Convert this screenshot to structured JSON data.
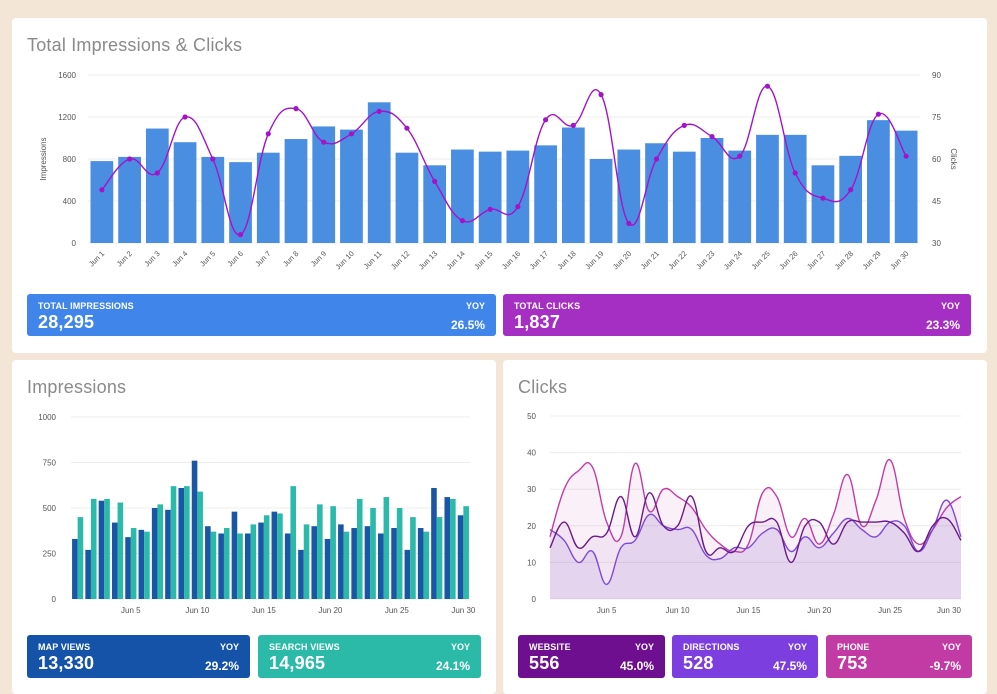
{
  "colors": {
    "impressions_bar": "#4a8ee2",
    "clicks_line": "#a314c9",
    "map_views": "#1a56a4",
    "search_views": "#2bbaaa",
    "website": "#6b1a8a",
    "directions": "#7e4ad6",
    "phone": "#c23ca8"
  },
  "top_panel": {
    "title": "Total Impressions & Clicks",
    "kpis": [
      {
        "label": "TOTAL IMPRESSIONS",
        "yoy_label": "YOY",
        "value": "28,295",
        "change": "26.5%",
        "color": "#3f85ea"
      },
      {
        "label": "TOTAL CLICKS",
        "yoy_label": "YOY",
        "value": "1,837",
        "change": "23.3%",
        "color": "#a62fc3"
      }
    ]
  },
  "impressions_panel": {
    "title": "Impressions",
    "kpis": [
      {
        "label": "MAP VIEWS",
        "yoy_label": "YOY",
        "value": "13,330",
        "change": "29.2%",
        "color": "#1553a8"
      },
      {
        "label": "SEARCH VIEWS",
        "yoy_label": "YOY",
        "value": "14,965",
        "change": "24.1%",
        "color": "#2bbaa7"
      }
    ]
  },
  "clicks_panel": {
    "title": "Clicks",
    "kpis": [
      {
        "label": "WEBSITE",
        "yoy_label": "YOY",
        "value": "556",
        "change": "45.0%",
        "color": "#6d0f8f"
      },
      {
        "label": "DIRECTIONS",
        "yoy_label": "YOY",
        "value": "528",
        "change": "47.5%",
        "color": "#7d3ee0"
      },
      {
        "label": "PHONE",
        "yoy_label": "YOY",
        "value": "753",
        "change": "-9.7%",
        "color": "#c23aa4"
      }
    ]
  },
  "chart_data": [
    {
      "type": "bar",
      "title": "Total Impressions & Clicks",
      "categories": [
        "Jun 1",
        "Jun 2",
        "Jun 3",
        "Jun 4",
        "Jun 5",
        "Jun 6",
        "Jun 7",
        "Jun 8",
        "Jun 9",
        "Jun 10",
        "Jun 11",
        "Jun 12",
        "Jun 13",
        "Jun 14",
        "Jun 15",
        "Jun 16",
        "Jun 17",
        "Jun 18",
        "Jun 19",
        "Jun 20",
        "Jun 21",
        "Jun 22",
        "Jun 23",
        "Jun 24",
        "Jun 25",
        "Jun 26",
        "Jun 27",
        "Jun 28",
        "Jun 29",
        "Jun 30"
      ],
      "series": [
        {
          "name": "Impressions",
          "type": "bar",
          "axis": "left",
          "values": [
            780,
            820,
            1090,
            960,
            820,
            770,
            860,
            990,
            1110,
            1080,
            1340,
            860,
            740,
            890,
            870,
            880,
            930,
            1100,
            800,
            890,
            950,
            870,
            1000,
            880,
            1030,
            1030,
            740,
            830,
            1170,
            1070
          ]
        },
        {
          "name": "Clicks",
          "type": "line",
          "axis": "right",
          "values": [
            49,
            60,
            55,
            75,
            60,
            33,
            69,
            78,
            66,
            69,
            77,
            71,
            52,
            38,
            42,
            43,
            74,
            72,
            83,
            37,
            60,
            72,
            68,
            61,
            86,
            55,
            46,
            49,
            76,
            61
          ]
        }
      ],
      "ylabel": "Impressions",
      "y2label": "Clicks",
      "ylim": [
        0,
        1600
      ],
      "yticks": [
        0,
        400,
        800,
        1200,
        1600
      ],
      "y2lim": [
        30,
        90
      ],
      "y2ticks": [
        30,
        45,
        60,
        75,
        90
      ],
      "grid": true
    },
    {
      "type": "bar",
      "title": "Impressions",
      "x": [
        1,
        2,
        3,
        4,
        5,
        6,
        7,
        8,
        9,
        10,
        11,
        12,
        13,
        14,
        15,
        16,
        17,
        18,
        19,
        20,
        21,
        22,
        23,
        24,
        25,
        26,
        27,
        28,
        29,
        30
      ],
      "xticks": [
        "Jun 5",
        "Jun 10",
        "Jun 15",
        "Jun 20",
        "Jun 25",
        "Jun 30"
      ],
      "xtick_positions": [
        5,
        10,
        15,
        20,
        25,
        30
      ],
      "series": [
        {
          "name": "Map Views",
          "values": [
            330,
            270,
            540,
            420,
            340,
            380,
            500,
            490,
            610,
            760,
            400,
            360,
            480,
            360,
            420,
            480,
            360,
            270,
            400,
            330,
            410,
            390,
            400,
            360,
            390,
            270,
            390,
            610,
            560,
            460
          ]
        },
        {
          "name": "Search Views",
          "values": [
            450,
            550,
            550,
            530,
            390,
            370,
            520,
            620,
            620,
            590,
            370,
            390,
            360,
            410,
            460,
            470,
            620,
            410,
            520,
            510,
            370,
            550,
            500,
            560,
            500,
            450,
            370,
            450,
            550,
            510
          ]
        }
      ],
      "ylim": [
        0,
        1000
      ],
      "yticks": [
        0,
        250,
        500,
        750,
        1000
      ],
      "grid": true
    },
    {
      "type": "area",
      "title": "Clicks",
      "x": [
        1,
        2,
        3,
        4,
        5,
        6,
        7,
        8,
        9,
        10,
        11,
        12,
        13,
        14,
        15,
        16,
        17,
        18,
        19,
        20,
        21,
        22,
        23,
        24,
        25,
        26,
        27,
        28,
        29,
        30
      ],
      "xticks": [
        "Jun 5",
        "Jun 10",
        "Jun 15",
        "Jun 20",
        "Jun 25",
        "Jun 30"
      ],
      "xtick_positions": [
        5,
        10,
        15,
        20,
        25,
        30
      ],
      "series": [
        {
          "name": "Website",
          "values": [
            14,
            21,
            14,
            17,
            18,
            28,
            17,
            29,
            20,
            20,
            28,
            13,
            14,
            13,
            20,
            21,
            21,
            10,
            20,
            21,
            15,
            21,
            21,
            21,
            21,
            18,
            13,
            20,
            22,
            16
          ]
        },
        {
          "name": "Directions",
          "values": [
            19,
            16,
            10,
            13,
            4,
            14,
            16,
            23,
            20,
            19,
            19,
            12,
            11,
            14,
            14,
            18,
            19,
            13,
            17,
            14,
            18,
            22,
            19,
            17,
            21,
            20,
            13,
            19,
            27,
            17
          ]
        },
        {
          "name": "Phone",
          "values": [
            17,
            30,
            35,
            36,
            21,
            17,
            37,
            24,
            30,
            28,
            25,
            19,
            15,
            13,
            15,
            29,
            28,
            17,
            22,
            15,
            23,
            34,
            20,
            27,
            38,
            22,
            15,
            19,
            25,
            28
          ]
        }
      ],
      "ylim": [
        0,
        50
      ],
      "yticks": [
        0,
        10,
        20,
        30,
        40,
        50
      ],
      "grid": true
    }
  ]
}
